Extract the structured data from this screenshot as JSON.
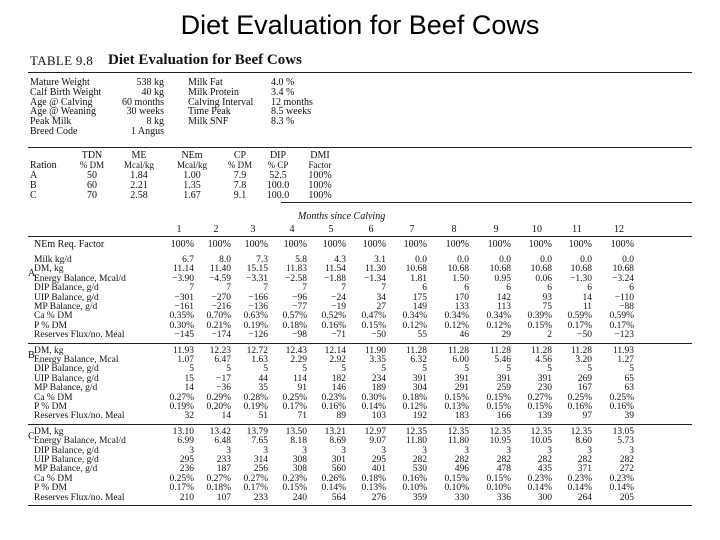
{
  "slide_title": "Diet Evaluation for Beef Cows",
  "table_label": "TABLE 9.8",
  "table_title": "Diet Evaluation for Beef Cows",
  "params_left": [
    {
      "label": "Mature Weight",
      "value": "538 kg"
    },
    {
      "label": "Calf Birth Weight",
      "value": "40 kg"
    },
    {
      "label": "Age @ Calving",
      "value": "60 months"
    },
    {
      "label": "Age @ Weaning",
      "value": "30 weeks"
    },
    {
      "label": "Peak Milk",
      "value": "8 kg"
    },
    {
      "label": "Breed Code",
      "value": "1 Angus"
    }
  ],
  "params_right": [
    {
      "label": "Milk Fat",
      "value": "4.0 %"
    },
    {
      "label": "Milk Protein",
      "value": "3.4 %"
    },
    {
      "label": "Calving Interval",
      "value": "12 months"
    },
    {
      "label": "Time Peak",
      "value": "8.5 weeks"
    },
    {
      "label": "Milk SNF",
      "value": "8.3 %"
    }
  ],
  "ration_headers": [
    "Ration",
    "TDN\n% DM",
    "ME\nMcal/kg",
    "NEm\nMcal/kg",
    "CP\n% DM",
    "DIP\n% CP",
    "DMI\nFactor"
  ],
  "rations": [
    [
      "A",
      "50",
      "1.84",
      "1.00",
      "7.9",
      "52.5",
      "100%"
    ],
    [
      "B",
      "60",
      "2.21",
      "1.35",
      "7.8",
      "100.0",
      "100%"
    ],
    [
      "C",
      "70",
      "2.58",
      "1.67",
      "9.1",
      "100.0",
      "100%"
    ]
  ],
  "months_caption": "Months since Calving",
  "months": [
    "1",
    "2",
    "3",
    "4",
    "5",
    "6",
    "7",
    "8",
    "9",
    "10",
    "11",
    "12"
  ],
  "nem_factor_label": "NEm Req. Factor",
  "nem_factor": [
    "100%",
    "100%",
    "100%",
    "100%",
    "100%",
    "100%",
    "100%",
    "100%",
    "100%",
    "100%",
    "100%",
    "100%"
  ],
  "sections": [
    {
      "code": "",
      "rows": [
        {
          "label": "Milk kg/d",
          "values": [
            "6.7",
            "8.0",
            "7.3",
            "5.8",
            "4.3",
            "3.1",
            "0.0",
            "0.0",
            "0.0",
            "0.0",
            "0.0",
            "0.0"
          ]
        }
      ]
    },
    {
      "code": "A",
      "rows": [
        {
          "label": "DM, kg",
          "values": [
            "11.14",
            "11.40",
            "15.15",
            "11.83",
            "11.54",
            "11.30",
            "10.68",
            "10.68",
            "10.68",
            "10.68",
            "10.68",
            "10.68"
          ]
        },
        {
          "label": "Energy Balance, Mcal/d",
          "values": [
            "−3.90",
            "−4.59",
            "−3.31",
            "−2.58",
            "−1.88",
            "−1.34",
            "1.81",
            "1.50",
            "0.95",
            "0.06",
            "−1.30",
            "−3.24"
          ]
        },
        {
          "label": "DIP Balance, g/d",
          "values": [
            "7",
            "7",
            "7",
            "7",
            "7",
            "7",
            "6",
            "6",
            "6",
            "6",
            "6",
            "6"
          ]
        },
        {
          "label": "UIP Balance, g/d",
          "values": [
            "−301",
            "−270",
            "−166",
            "−96",
            "−24",
            "34",
            "175",
            "170",
            "142",
            "93",
            "14",
            "−110"
          ]
        },
        {
          "label": "MP Balance, g/d",
          "values": [
            "−161",
            "−216",
            "−136",
            "−77",
            "−19",
            "27",
            "149",
            "133",
            "113",
            "75",
            "11",
            "−88"
          ]
        },
        {
          "label": "Ca % DM",
          "values": [
            "0.35%",
            "0.70%",
            "0.63%",
            "0.57%",
            "0.52%",
            "0.47%",
            "0.34%",
            "0.34%",
            "0.34%",
            "0.39%",
            "0.59%",
            "0.59%"
          ]
        },
        {
          "label": "P % DM",
          "values": [
            "0.30%",
            "0.21%",
            "0.19%",
            "0.18%",
            "0.16%",
            "0.15%",
            "0.12%",
            "0.12%",
            "0.12%",
            "0.15%",
            "0.17%",
            "0.17%"
          ]
        },
        {
          "label": "Reserves Flux/no. Meal",
          "values": [
            "−145",
            "−174",
            "−126",
            "−98",
            "−71",
            "−50",
            "55",
            "46",
            "29",
            "2",
            "−50",
            "−123"
          ]
        }
      ]
    },
    {
      "code": "B",
      "rows": [
        {
          "label": "DM, kg",
          "values": [
            "11.93",
            "12.23",
            "12.72",
            "12.43",
            "12.14",
            "11.90",
            "11.28",
            "11.28",
            "11.28",
            "11.28",
            "11.28",
            "11.93"
          ]
        },
        {
          "label": "Energy Balance, Mcal",
          "values": [
            "1.07",
            "6.47",
            "1.63",
            "2.29",
            "2.92",
            "3.35",
            "6.32",
            "6.00",
            "5.46",
            "4.56",
            "3.20",
            "1.27"
          ]
        },
        {
          "label": "DIP Balance, g/d",
          "values": [
            "5",
            "5",
            "5",
            "5",
            "5",
            "5",
            "5",
            "5",
            "5",
            "5",
            "5",
            "5"
          ]
        },
        {
          "label": "UIP Balance, g/d",
          "values": [
            "15",
            "−17",
            "44",
            "114",
            "182",
            "234",
            "391",
            "391",
            "391",
            "391",
            "269",
            "65"
          ]
        },
        {
          "label": "MP Balance, g/d",
          "values": [
            "14",
            "−36",
            "35",
            "91",
            "146",
            "189",
            "304",
            "291",
            "259",
            "230",
            "167",
            "63"
          ]
        },
        {
          "label": "Ca % DM",
          "values": [
            "0.27%",
            "0.29%",
            "0.28%",
            "0.25%",
            "0.23%",
            "0.30%",
            "0.18%",
            "0.15%",
            "0.15%",
            "0.27%",
            "0.25%",
            "0.25%"
          ]
        },
        {
          "label": "P % DM",
          "values": [
            "0.19%",
            "0.20%",
            "0.19%",
            "0.17%",
            "0.16%",
            "0.14%",
            "0.12%",
            "0.13%",
            "0.15%",
            "0.15%",
            "0.16%",
            "0.16%"
          ]
        },
        {
          "label": "Reserves Flux/no. Meal",
          "values": [
            "32",
            "14",
            "51",
            "71",
            "89",
            "103",
            "192",
            "183",
            "166",
            "139",
            "97",
            "39"
          ]
        }
      ]
    },
    {
      "code": "C",
      "rows": [
        {
          "label": "DM, kg",
          "values": [
            "13.10",
            "13.42",
            "13.79",
            "13.50",
            "13.21",
            "12.97",
            "12.35",
            "12.35",
            "12.35",
            "12.35",
            "12.35",
            "13.05"
          ]
        },
        {
          "label": "Energy Balance, Mcal/d",
          "values": [
            "6.99",
            "6.48",
            "7.65",
            "8.18",
            "8.69",
            "9.07",
            "11.80",
            "11.80",
            "10.95",
            "10.05",
            "8.60",
            "5.73"
          ]
        },
        {
          "label": "DIP Balance, g/d",
          "values": [
            "3",
            "3",
            "3",
            "3",
            "3",
            "3",
            "3",
            "3",
            "3",
            "3",
            "3",
            "3"
          ]
        },
        {
          "label": "UIP Balance, g/d",
          "values": [
            "295",
            "233",
            "314",
            "308",
            "301",
            "295",
            "282",
            "282",
            "282",
            "282",
            "282",
            "282"
          ]
        },
        {
          "label": "MP Balance, g/d",
          "values": [
            "236",
            "187",
            "256",
            "308",
            "560",
            "401",
            "530",
            "496",
            "478",
            "435",
            "371",
            "272"
          ]
        },
        {
          "label": "Ca % DM",
          "values": [
            "0.25%",
            "0.27%",
            "0.27%",
            "0.23%",
            "0.26%",
            "0.18%",
            "0.16%",
            "0.15%",
            "0.15%",
            "0.23%",
            "0.23%",
            "0.23%"
          ]
        },
        {
          "label": "P % DM",
          "values": [
            "0.17%",
            "0.18%",
            "0.17%",
            "0.15%",
            "0.14%",
            "0.13%",
            "0.10%",
            "0.10%",
            "0.10%",
            "0.14%",
            "0.14%",
            "0.14%"
          ]
        },
        {
          "label": "Reserves Flux/no. Meal",
          "values": [
            "210",
            "107",
            "233",
            "240",
            "564",
            "276",
            "359",
            "330",
            "336",
            "300",
            "264",
            "205"
          ]
        }
      ]
    }
  ]
}
